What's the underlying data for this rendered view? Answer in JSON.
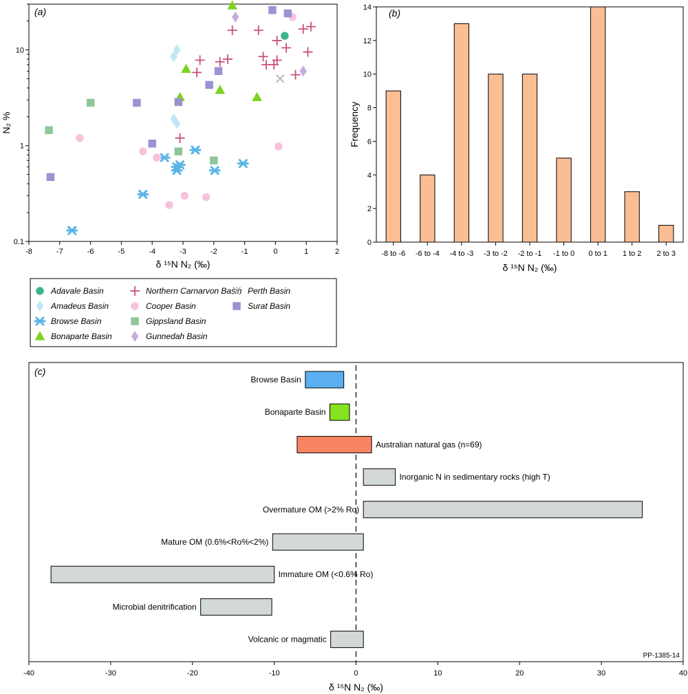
{
  "chart_data": [
    {
      "type": "scatter",
      "panel_label": "(a)",
      "xlabel": "δ ¹⁵N N₂ (‰)",
      "ylabel": "N₂ %",
      "xlim": [
        -8,
        2
      ],
      "ylim": [
        0.1,
        30
      ],
      "y_scale": "log",
      "x_ticks": [
        -8,
        -7,
        -6,
        -5,
        -4,
        -3,
        -2,
        -1,
        0,
        1,
        2
      ],
      "y_ticks": [
        0.1,
        1,
        10
      ],
      "legend_position": "below",
      "series": [
        {
          "name": "Adavale Basin",
          "marker": "circle",
          "color": "#3cb48c",
          "points": [
            [
              0.3,
              14
            ]
          ]
        },
        {
          "name": "Amadeus Basin",
          "marker": "diamond",
          "color": "#bfe7f5",
          "points": [
            [
              -3.2,
              10
            ],
            [
              -3.3,
              8.5
            ],
            [
              -3.3,
              1.9
            ],
            [
              -3.2,
              1.7
            ]
          ]
        },
        {
          "name": "Browse Basin",
          "marker": "asterisk",
          "color": "#5ab4e6",
          "points": [
            [
              -6.6,
              0.13
            ],
            [
              -4.3,
              0.31
            ],
            [
              -3.6,
              0.75
            ],
            [
              -3.2,
              0.55
            ],
            [
              -3.1,
              0.63
            ],
            [
              -3.2,
              0.6
            ],
            [
              -2.6,
              0.9
            ],
            [
              -1.97,
              0.55
            ],
            [
              -1.05,
              0.65
            ]
          ]
        },
        {
          "name": "Bonaparte Basin",
          "marker": "triangle",
          "color": "#7ed321",
          "points": [
            [
              -1.4,
              30
            ],
            [
              -2.9,
              6.3
            ],
            [
              -3.1,
              3.2
            ],
            [
              -1.8,
              3.8
            ],
            [
              -0.6,
              3.2
            ]
          ]
        },
        {
          "name": "Northern Carnarvon Basin",
          "marker": "plus",
          "color": "#c8507a",
          "points": [
            [
              -1.4,
              16
            ],
            [
              -0.55,
              16
            ],
            [
              1.15,
              17.5
            ],
            [
              0.9,
              16.5
            ],
            [
              0.05,
              12.5
            ],
            [
              0.35,
              10.5
            ],
            [
              1.05,
              9.5
            ],
            [
              -0.4,
              8.5
            ],
            [
              0.05,
              7.8
            ],
            [
              -0.3,
              7
            ],
            [
              -0.05,
              7
            ],
            [
              -1.55,
              8
            ],
            [
              -1.8,
              7.5
            ],
            [
              -2.45,
              7.8
            ],
            [
              -2.55,
              5.8
            ],
            [
              0.65,
              5.5
            ],
            [
              -3.1,
              1.2
            ]
          ]
        },
        {
          "name": "Cooper Basin",
          "marker": "circle",
          "color": "#f7c3dc",
          "points": [
            [
              0.55,
              22
            ],
            [
              -6.35,
              1.2
            ],
            [
              -4.3,
              0.87
            ],
            [
              -3.85,
              0.75
            ],
            [
              0.1,
              0.98
            ],
            [
              -2.95,
              0.3
            ],
            [
              -2.25,
              0.29
            ],
            [
              -3.45,
              0.24
            ]
          ]
        },
        {
          "name": "Gippsland Basin",
          "marker": "square",
          "color": "#8fc79a",
          "points": [
            [
              -6.0,
              2.8
            ],
            [
              -7.35,
              1.45
            ],
            [
              -3.15,
              0.87
            ],
            [
              -2.0,
              0.7
            ]
          ]
        },
        {
          "name": "Gunnedah Basin",
          "marker": "diamond",
          "color": "#c8aedf",
          "points": [
            [
              -1.3,
              22
            ],
            [
              0.9,
              6
            ]
          ]
        },
        {
          "name": "Perth Basin",
          "marker": "cross",
          "color": "#b4b4b4",
          "points": [
            [
              0.15,
              5
            ]
          ]
        },
        {
          "name": "Surat Basin",
          "marker": "square",
          "color": "#9a92d2",
          "points": [
            [
              -0.1,
              26
            ],
            [
              0.4,
              24
            ],
            [
              -1.85,
              6
            ],
            [
              -2.15,
              4.3
            ],
            [
              -4.5,
              2.8
            ],
            [
              -3.15,
              2.85
            ],
            [
              -4.0,
              1.05
            ],
            [
              -7.3,
              0.47
            ]
          ]
        }
      ]
    },
    {
      "type": "bar",
      "panel_label": "(b)",
      "xlabel": "δ ¹⁵N N₂ (‰)",
      "ylabel": "Frequency",
      "ylim": [
        0,
        14
      ],
      "y_ticks": [
        0,
        2,
        4,
        6,
        8,
        10,
        12,
        14
      ],
      "color": "#fbbd93",
      "categories": [
        "-8 to -6",
        "-6 to -4",
        "-4 to -3",
        "-3 to -2",
        "-2 to -1",
        "-1 to 0",
        "0 to 1",
        "1 to 2",
        "2 to 3"
      ],
      "values": [
        9,
        4,
        13,
        10,
        10,
        5,
        14,
        3,
        1
      ]
    },
    {
      "type": "range-bar",
      "panel_label": "(c)",
      "xlabel": "δ ¹⁵N N₂ (‰)",
      "xlim": [
        -40,
        40
      ],
      "x_ticks": [
        -40,
        -30,
        -20,
        -10,
        0,
        10,
        20,
        30,
        40
      ],
      "reference_line": 0,
      "corner_note": "PP-1385-14",
      "ranges": [
        {
          "label": "Browse Basin",
          "min": -6.2,
          "max": -1.5,
          "color": "#5aaff0",
          "label_side": "left"
        },
        {
          "label": "Bonaparte Basin",
          "min": -3.2,
          "max": -0.8,
          "color": "#86e21e",
          "label_side": "left"
        },
        {
          "label": "Australian natural gas (n=69)",
          "min": -7.2,
          "max": 1.9,
          "color": "#f88463",
          "label_side": "right"
        },
        {
          "label": "Inorganic N in sedimentary rocks (high T)",
          "min": 0.9,
          "max": 4.8,
          "color": "#d3d8d8",
          "label_side": "right"
        },
        {
          "label": "Overmature OM (>2% Ro)",
          "min": 0.9,
          "max": 35,
          "color": "#d3d8d8",
          "label_side": "left"
        },
        {
          "label": "Mature OM (0.6%<Ro%<2%)",
          "min": -10.2,
          "max": 0.9,
          "color": "#d3d8d8",
          "label_side": "left"
        },
        {
          "label": "Immature OM (<0.6% Ro)",
          "min": -37.3,
          "max": -10,
          "color": "#d3d8d8",
          "label_side": "right"
        },
        {
          "label": "Microbial denitrification",
          "min": -19,
          "max": -10.3,
          "color": "#d3d8d8",
          "label_side": "left"
        },
        {
          "label": "Volcanic or magmatic",
          "min": -3.1,
          "max": 0.9,
          "color": "#d3d8d8",
          "label_side": "left"
        }
      ]
    }
  ]
}
